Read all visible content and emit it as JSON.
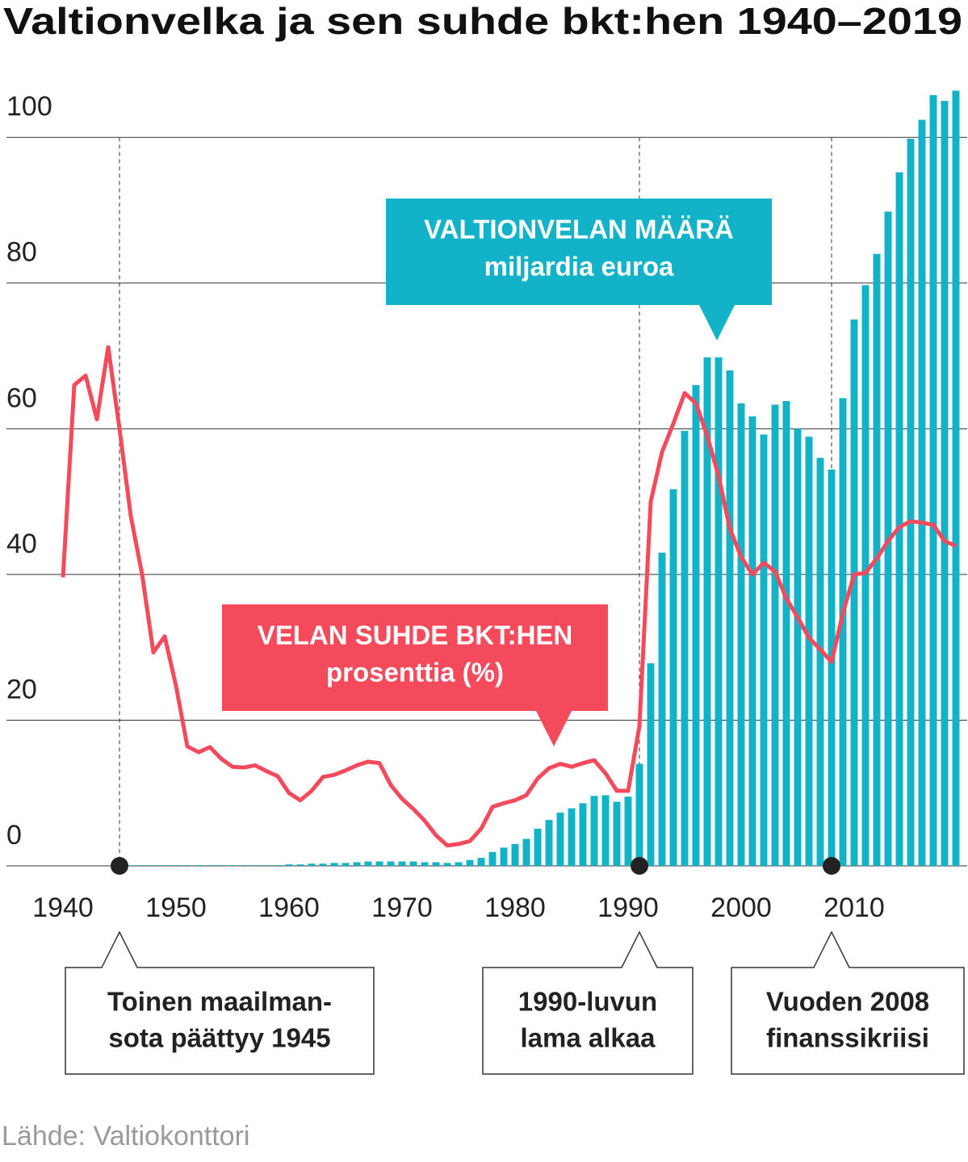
{
  "chart_data": {
    "type": "combo",
    "title": "Valtionvelka ja sen suhde bkt:hen 1940–2019",
    "source": "Lähde: Valtiokonttori",
    "x": [
      1940,
      1941,
      1942,
      1943,
      1944,
      1945,
      1946,
      1947,
      1948,
      1949,
      1950,
      1951,
      1952,
      1953,
      1954,
      1955,
      1956,
      1957,
      1958,
      1959,
      1960,
      1961,
      1962,
      1963,
      1964,
      1965,
      1966,
      1967,
      1968,
      1969,
      1970,
      1971,
      1972,
      1973,
      1974,
      1975,
      1976,
      1977,
      1978,
      1979,
      1980,
      1981,
      1982,
      1983,
      1984,
      1985,
      1986,
      1987,
      1988,
      1989,
      1990,
      1991,
      1992,
      1993,
      1994,
      1995,
      1996,
      1997,
      1998,
      1999,
      2000,
      2001,
      2002,
      2003,
      2004,
      2005,
      2006,
      2007,
      2008,
      2009,
      2010,
      2011,
      2012,
      2013,
      2014,
      2015,
      2016,
      2017,
      2018,
      2019
    ],
    "series": [
      {
        "name": "VALTIONVELAN MÄÄRÄ",
        "unit": "miljardia euroa",
        "mark": "bar",
        "color": "#12b2c8",
        "values": [
          0,
          0,
          0,
          0,
          0,
          0.1,
          0.1,
          0.1,
          0.1,
          0.1,
          0.1,
          0.1,
          0.1,
          0.1,
          0.1,
          0.1,
          0.1,
          0.1,
          0.1,
          0.1,
          0.2,
          0.2,
          0.3,
          0.3,
          0.4,
          0.4,
          0.5,
          0.6,
          0.6,
          0.6,
          0.6,
          0.6,
          0.5,
          0.5,
          0.4,
          0.5,
          0.8,
          1.1,
          1.9,
          2.5,
          3.0,
          3.7,
          5.1,
          6.3,
          7.3,
          7.9,
          8.6,
          9.6,
          9.7,
          8.8,
          9.5,
          14,
          27.8,
          43,
          51.7,
          59.7,
          66,
          69.8,
          69.8,
          68,
          63.5,
          61.7,
          59.2,
          63.3,
          63.8,
          60,
          58.9,
          56,
          54.4,
          64.2,
          75,
          79.7,
          84,
          89.8,
          95.2,
          99.8,
          102.4,
          105.8,
          105,
          106.4
        ]
      },
      {
        "name": "VELAN SUHDE BKT:HEN",
        "unit": "prosenttia (%)",
        "mark": "line",
        "color": "#f44a5c",
        "values": [
          39.6,
          66,
          67.3,
          61.3,
          71.2,
          60,
          48,
          40,
          29.3,
          31.5,
          24.7,
          16.4,
          15.6,
          16.3,
          14.7,
          13.6,
          13.5,
          13.8,
          13,
          12.3,
          10,
          9,
          10.3,
          12.2,
          12.5,
          13.1,
          13.8,
          14.3,
          14.1,
          11.1,
          9.2,
          7.8,
          6.2,
          4.2,
          2.8,
          3,
          3.4,
          5.1,
          8.1,
          8.6,
          9,
          9.7,
          12,
          13.4,
          14,
          13.6,
          14.1,
          14.5,
          12.7,
          10.3,
          10.3,
          19.2,
          50,
          56.8,
          60.7,
          64.9,
          63.5,
          59,
          53.5,
          46.3,
          42.4,
          40,
          41.6,
          40.4,
          36.7,
          34.1,
          31.3,
          29.7,
          28,
          34.7,
          40,
          40.2,
          42.2,
          44.6,
          46.5,
          47.3,
          47.1,
          46.8,
          44.6,
          43.9
        ]
      }
    ],
    "xlim": [
      1935,
      2020
    ],
    "xticks": [
      1940,
      1950,
      1960,
      1970,
      1980,
      1990,
      2000,
      2010
    ],
    "ylim": [
      0,
      107
    ],
    "yticks": [
      0,
      20,
      40,
      60,
      80,
      100
    ],
    "grid": true,
    "annotations": [
      {
        "x": 1945,
        "lines": [
          "Toinen maailman-",
          "sota päättyy 1945"
        ]
      },
      {
        "x": 1991,
        "lines": [
          "1990-luvun",
          "lama alkaa"
        ]
      },
      {
        "x": 2008,
        "lines": [
          "Vuoden 2008",
          "finanssikriisi"
        ]
      }
    ]
  }
}
